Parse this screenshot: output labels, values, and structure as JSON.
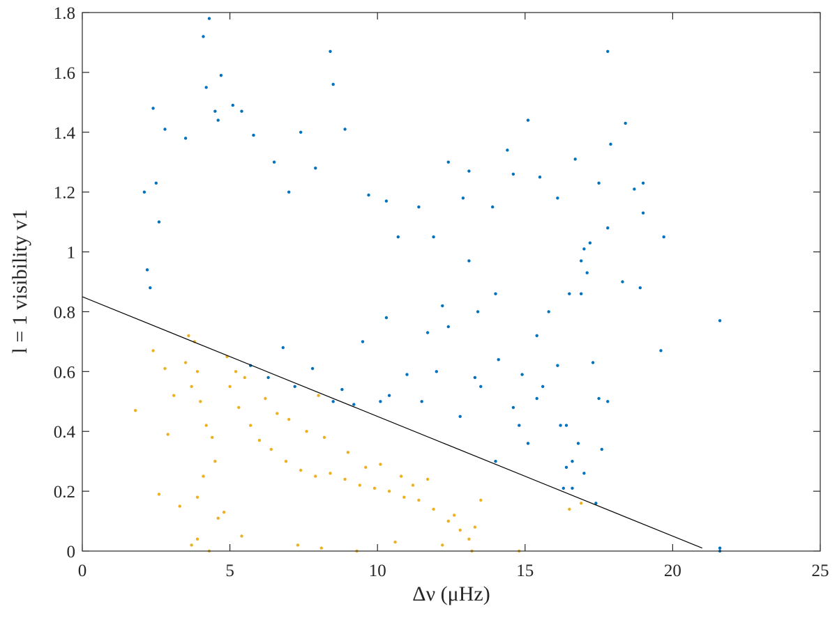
{
  "chart_data": {
    "type": "scatter",
    "xlabel": "Δν (μHz)",
    "ylabel": "l = 1 visibility v1",
    "xlim": [
      0,
      25
    ],
    "ylim": [
      0,
      1.8
    ],
    "x_ticks": [
      "0",
      "5",
      "10",
      "15",
      "20",
      "25"
    ],
    "y_ticks": [
      "0",
      "0.2",
      "0.4",
      "0.6",
      "0.8",
      "1",
      "1.2",
      "1.4",
      "1.6",
      "1.8"
    ],
    "grid": false,
    "legend": "none",
    "divider_line": {
      "x": [
        0,
        21
      ],
      "y": [
        0.85,
        0.01
      ]
    },
    "series": [
      {
        "color": "#0072bd",
        "points": [
          [
            4.3,
            1.78
          ],
          [
            4.1,
            1.72
          ],
          [
            4.2,
            1.55
          ],
          [
            4.7,
            1.59
          ],
          [
            5.1,
            1.49
          ],
          [
            5.4,
            1.47
          ],
          [
            2.4,
            1.48
          ],
          [
            8.4,
            1.67
          ],
          [
            8.5,
            1.56
          ],
          [
            17.8,
            1.67
          ],
          [
            4.6,
            1.44
          ],
          [
            8.9,
            1.41
          ],
          [
            2.8,
            1.41
          ],
          [
            4.5,
            1.47
          ],
          [
            15.1,
            1.44
          ],
          [
            18.4,
            1.43
          ],
          [
            7.4,
            1.4
          ],
          [
            14.4,
            1.34
          ],
          [
            16.7,
            1.31
          ],
          [
            17.9,
            1.36
          ],
          [
            12.4,
            1.3
          ],
          [
            13.1,
            1.27
          ],
          [
            17.5,
            1.23
          ],
          [
            19.0,
            1.23
          ],
          [
            18.7,
            1.21
          ],
          [
            19.0,
            1.13
          ],
          [
            19.7,
            1.05
          ],
          [
            17.2,
            1.03
          ],
          [
            18.3,
            0.9
          ],
          [
            18.9,
            0.88
          ],
          [
            17.8,
            1.08
          ],
          [
            17.0,
            1.01
          ],
          [
            16.9,
            0.97
          ],
          [
            16.5,
            0.86
          ],
          [
            21.6,
            0.77
          ],
          [
            19.6,
            0.67
          ],
          [
            17.5,
            0.51
          ],
          [
            17.8,
            0.5
          ],
          [
            16.2,
            0.42
          ],
          [
            16.4,
            0.42
          ],
          [
            16.8,
            0.36
          ],
          [
            17.6,
            0.34
          ],
          [
            16.6,
            0.3
          ],
          [
            16.4,
            0.28
          ],
          [
            17.0,
            0.26
          ],
          [
            16.3,
            0.21
          ],
          [
            16.6,
            0.21
          ],
          [
            17.4,
            0.16
          ],
          [
            21.6,
            0.01
          ],
          [
            21.6,
            0.0
          ],
          [
            14.0,
            0.3
          ],
          [
            14.8,
            0.42
          ],
          [
            15.1,
            0.36
          ],
          [
            13.5,
            0.55
          ],
          [
            12.8,
            0.45
          ],
          [
            12.0,
            0.6
          ],
          [
            11.5,
            0.5
          ],
          [
            10.1,
            0.5
          ],
          [
            9.2,
            0.49
          ],
          [
            8.5,
            0.5
          ],
          [
            8.8,
            0.54
          ],
          [
            10.4,
            0.52
          ],
          [
            12.4,
            0.75
          ],
          [
            11.7,
            0.73
          ],
          [
            14.9,
            0.59
          ],
          [
            14.1,
            0.64
          ],
          [
            15.6,
            0.55
          ],
          [
            16.1,
            0.62
          ],
          [
            17.3,
            0.63
          ],
          [
            15.4,
            0.51
          ],
          [
            14.6,
            0.48
          ],
          [
            13.3,
            0.58
          ],
          [
            11.0,
            0.59
          ],
          [
            13.1,
            0.97
          ],
          [
            10.7,
            1.05
          ],
          [
            11.9,
            1.05
          ],
          [
            14.0,
            0.86
          ],
          [
            15.4,
            0.72
          ],
          [
            16.9,
            0.86
          ],
          [
            17.1,
            0.93
          ],
          [
            2.1,
            1.2
          ],
          [
            2.2,
            0.94
          ],
          [
            2.3,
            0.88
          ],
          [
            2.5,
            1.23
          ],
          [
            2.6,
            1.1
          ],
          [
            3.5,
            1.38
          ],
          [
            5.8,
            1.39
          ],
          [
            6.5,
            1.3
          ],
          [
            7.0,
            1.2
          ],
          [
            7.9,
            1.28
          ],
          [
            9.7,
            1.19
          ],
          [
            10.3,
            1.17
          ],
          [
            11.4,
            1.15
          ],
          [
            12.9,
            1.18
          ],
          [
            13.9,
            1.15
          ],
          [
            14.6,
            1.26
          ],
          [
            15.5,
            1.25
          ],
          [
            16.1,
            1.18
          ],
          [
            6.3,
            0.58
          ],
          [
            7.2,
            0.55
          ],
          [
            7.8,
            0.61
          ],
          [
            6.8,
            0.68
          ],
          [
            5.7,
            0.62
          ],
          [
            9.5,
            0.7
          ],
          [
            10.3,
            0.78
          ],
          [
            12.2,
            0.82
          ],
          [
            13.4,
            0.8
          ],
          [
            15.8,
            0.8
          ]
        ]
      },
      {
        "color": "#edb120",
        "points": [
          [
            1.8,
            0.47
          ],
          [
            2.6,
            0.19
          ],
          [
            2.9,
            0.39
          ],
          [
            3.3,
            0.15
          ],
          [
            3.6,
            0.72
          ],
          [
            3.8,
            0.7
          ],
          [
            3.9,
            0.6
          ],
          [
            3.7,
            0.55
          ],
          [
            3.5,
            0.63
          ],
          [
            4.0,
            0.5
          ],
          [
            4.2,
            0.42
          ],
          [
            4.4,
            0.38
          ],
          [
            4.5,
            0.3
          ],
          [
            4.1,
            0.25
          ],
          [
            3.9,
            0.18
          ],
          [
            4.8,
            0.13
          ],
          [
            4.6,
            0.11
          ],
          [
            3.7,
            0.02
          ],
          [
            3.9,
            0.04
          ],
          [
            4.3,
            0.0
          ],
          [
            5.4,
            0.05
          ],
          [
            7.3,
            0.02
          ],
          [
            8.1,
            0.01
          ],
          [
            9.3,
            0.0
          ],
          [
            5.0,
            0.55
          ],
          [
            5.3,
            0.48
          ],
          [
            5.7,
            0.42
          ],
          [
            6.0,
            0.37
          ],
          [
            6.4,
            0.34
          ],
          [
            6.9,
            0.3
          ],
          [
            7.4,
            0.27
          ],
          [
            7.9,
            0.25
          ],
          [
            8.4,
            0.26
          ],
          [
            8.9,
            0.24
          ],
          [
            9.4,
            0.22
          ],
          [
            9.9,
            0.21
          ],
          [
            10.4,
            0.2
          ],
          [
            10.9,
            0.18
          ],
          [
            11.4,
            0.17
          ],
          [
            11.9,
            0.14
          ],
          [
            12.4,
            0.1
          ],
          [
            12.8,
            0.07
          ],
          [
            13.1,
            0.04
          ],
          [
            13.2,
            0.0
          ],
          [
            12.2,
            0.02
          ],
          [
            13.5,
            0.17
          ],
          [
            13.3,
            0.08
          ],
          [
            11.7,
            0.24
          ],
          [
            10.1,
            0.29
          ],
          [
            9.0,
            0.33
          ],
          [
            8.2,
            0.38
          ],
          [
            7.0,
            0.44
          ],
          [
            6.2,
            0.51
          ],
          [
            5.5,
            0.58
          ],
          [
            2.4,
            0.67
          ],
          [
            2.8,
            0.61
          ],
          [
            3.1,
            0.52
          ],
          [
            4.9,
            0.65
          ],
          [
            5.2,
            0.6
          ],
          [
            6.6,
            0.46
          ],
          [
            7.6,
            0.4
          ],
          [
            8.0,
            0.52
          ],
          [
            9.6,
            0.28
          ],
          [
            10.8,
            0.25
          ],
          [
            11.2,
            0.22
          ],
          [
            12.6,
            0.12
          ],
          [
            14.8,
            0.0
          ],
          [
            16.5,
            0.14
          ],
          [
            16.9,
            0.16
          ],
          [
            10.6,
            0.03
          ]
        ]
      }
    ]
  }
}
